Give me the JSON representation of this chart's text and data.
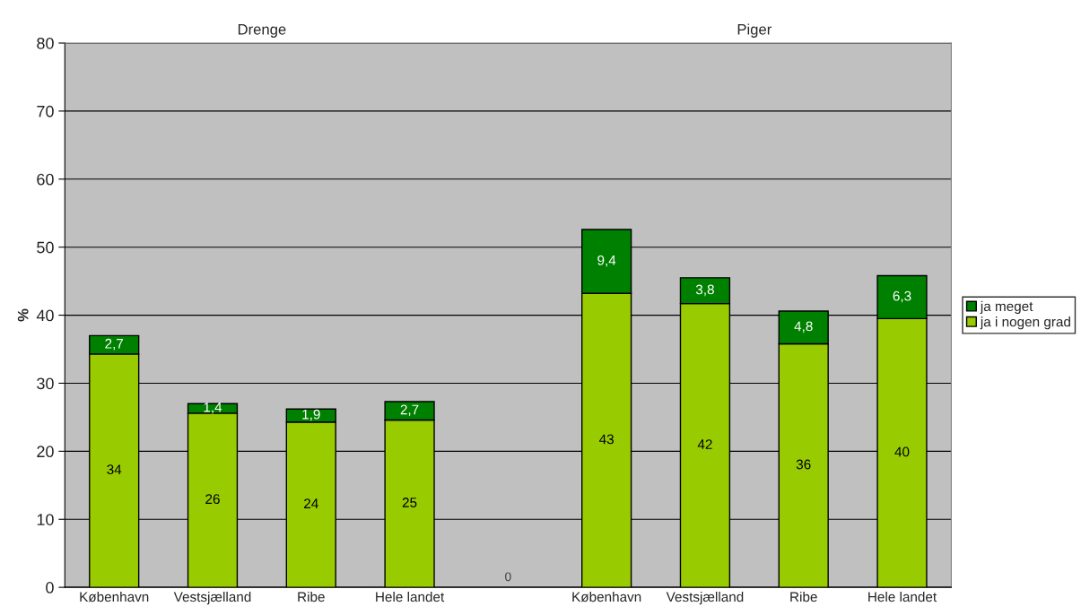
{
  "chart_data": {
    "type": "bar",
    "stacked": true,
    "categories": [
      "København",
      "Vestsjælland",
      "Ribe",
      "Hele landet",
      null,
      "København",
      "Vestsjælland",
      "Ribe",
      "Hele landet"
    ],
    "series": [
      {
        "name": "ja i nogen grad",
        "color": "#99cc00",
        "values": [
          34.3,
          25.6,
          24.3,
          24.6,
          0,
          43.2,
          41.7,
          35.8,
          39.5
        ],
        "value_labels": [
          "34",
          "26",
          "24",
          "25",
          "0",
          "43",
          "42",
          "36",
          "40"
        ]
      },
      {
        "name": "ja meget",
        "color": "#008000",
        "values": [
          2.7,
          1.4,
          1.9,
          2.7,
          null,
          9.4,
          3.8,
          4.8,
          6.3
        ],
        "value_labels": [
          "2,7",
          "1,4",
          "1,9",
          "2,7",
          null,
          "9,4",
          "3,8",
          "4,8",
          "6,3"
        ]
      }
    ],
    "ylabel": "%",
    "ylim": [
      0,
      80
    ],
    "yticks": [
      0,
      10,
      20,
      30,
      40,
      50,
      60,
      70,
      80
    ],
    "grid": "y",
    "legend": "right",
    "annotations": [
      "Drenge",
      "Piger"
    ]
  }
}
